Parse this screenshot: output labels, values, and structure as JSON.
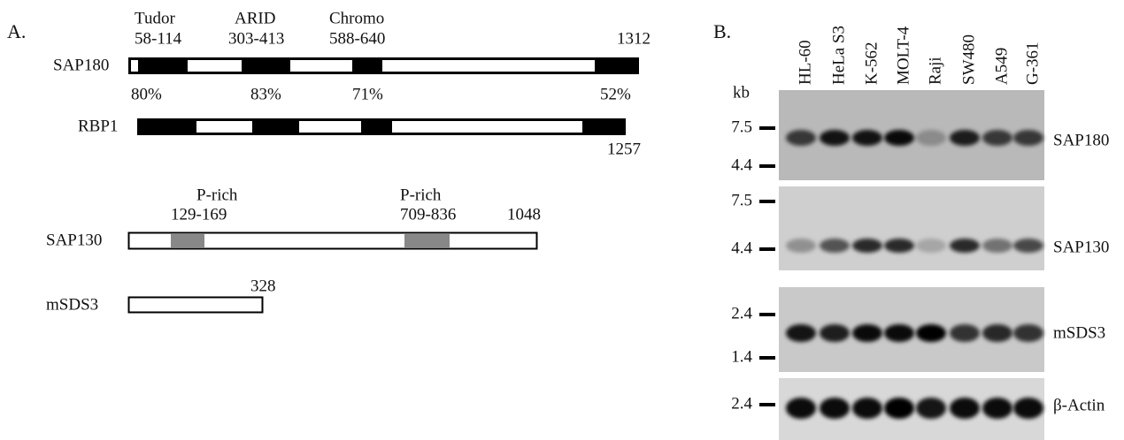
{
  "panel_a": {
    "label": "A.",
    "domains": [
      {
        "name": "Tudor",
        "range": "58-114"
      },
      {
        "name": "ARID",
        "range": "303-413"
      },
      {
        "name": "Chromo",
        "range": "588-640"
      }
    ],
    "proteins": [
      {
        "name": "SAP180",
        "length": "1312"
      },
      {
        "name": "RBP1",
        "length": "1257"
      },
      {
        "name": "SAP130",
        "length": "1048"
      },
      {
        "name": "mSDS3",
        "length": "328"
      }
    ],
    "identities": [
      "80%",
      "83%",
      "71%",
      "52%"
    ],
    "sap130_domains": [
      {
        "name": "P-rich",
        "range": "129-169"
      },
      {
        "name": "P-rich",
        "range": "709-836"
      }
    ]
  },
  "panel_b": {
    "label": "B.",
    "unit": "kb",
    "lanes": [
      "HL-60",
      "HeLa S3",
      "K-562",
      "MOLT-4",
      "Raji",
      "SW480",
      "A549",
      "G-361"
    ],
    "blots": [
      {
        "probe": "SAP180",
        "markers": [
          "7.5",
          "4.4"
        ]
      },
      {
        "probe": "SAP130",
        "markers": [
          "7.5",
          "4.4"
        ]
      },
      {
        "probe": "mSDS3",
        "markers": [
          "2.4",
          "1.4"
        ]
      },
      {
        "probe": "β-Actin",
        "markers": [
          "2.4"
        ]
      }
    ]
  }
}
